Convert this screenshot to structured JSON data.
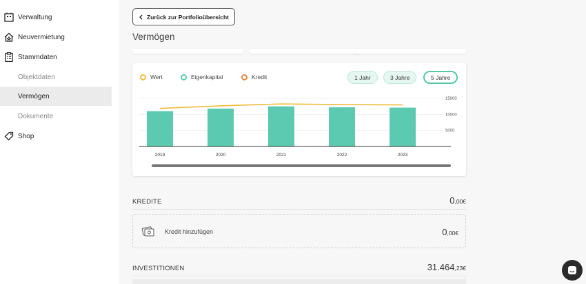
{
  "sidebar": {
    "items": [
      {
        "label": "Verwaltung",
        "icon": "building-icon"
      },
      {
        "label": "Neuvermietung",
        "icon": "house-star-icon"
      },
      {
        "label": "Stammdaten",
        "icon": "clipboard-icon"
      },
      {
        "label": "Objektdaten"
      },
      {
        "label": "Vermögen",
        "active": true
      },
      {
        "label": "Dokumente"
      },
      {
        "label": "Shop",
        "icon": "tag-icon"
      }
    ]
  },
  "main": {
    "back_label": "Zurück zur Portfolioübersicht",
    "title": "Vermögen"
  },
  "chart": {
    "legend": [
      "Wert",
      "Eigenkapital",
      "Kredit"
    ],
    "ranges": [
      "1 Jahr",
      "3 Jahre",
      "5 Jahre"
    ],
    "active_range": "5 Jahre"
  },
  "chart_data": {
    "type": "bar",
    "categories": [
      "2019",
      "2020",
      "2021",
      "2022",
      "2023"
    ],
    "series": [
      {
        "name": "Eigenkapital",
        "type": "bar",
        "values": [
          11000,
          11800,
          12500,
          12200,
          12100
        ]
      },
      {
        "name": "Wert",
        "type": "line",
        "values": [
          11000,
          11800,
          12400,
          12200,
          12100
        ]
      },
      {
        "name": "Kredit",
        "type": "line",
        "values": [
          0,
          0,
          0,
          0,
          0
        ]
      }
    ],
    "ylim": [
      0,
      15000
    ],
    "yticks": [
      "15000",
      "10000",
      "5000"
    ],
    "colors": {
      "Wert": "#f2b936",
      "Eigenkapital": "#5ccab0",
      "Kredit": "#e08a3c"
    },
    "grid": true
  },
  "kredite": {
    "label": "KREDITE",
    "amount_main": "0",
    "amount_frac": ",00€",
    "add_label": "Kredit hinzufügen",
    "add_amount_main": "0",
    "add_amount_frac": ",00€"
  },
  "investitionen": {
    "label": "INVESTITIONEN",
    "amount_main": "31.464",
    "amount_frac": ",23€"
  }
}
